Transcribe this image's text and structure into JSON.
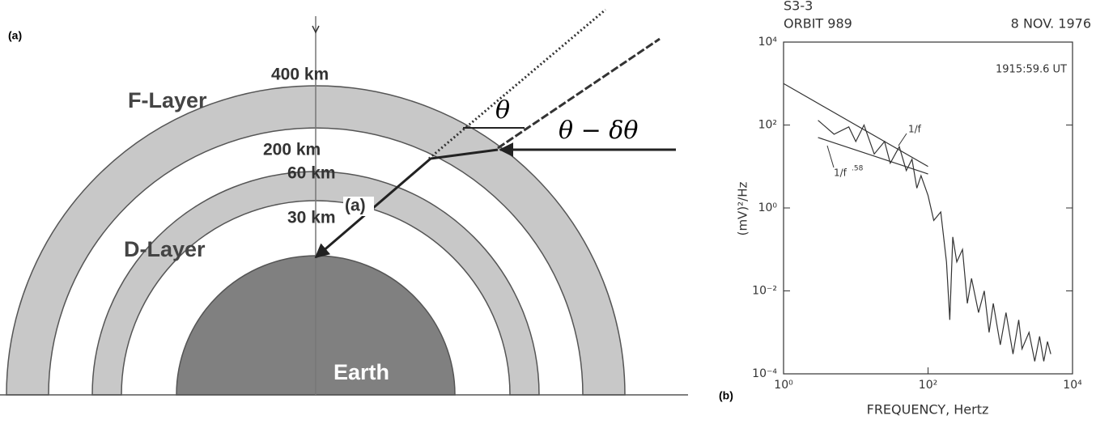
{
  "diagram": {
    "panel_label": "(a)",
    "labels": {
      "f_top": "400 km",
      "f_bottom": "200 km",
      "d_top": "60 km",
      "d_bottom": "30 km",
      "f_layer": "F-Layer",
      "d_layer": "D-Layer",
      "earth": "Earth",
      "ray_label": "(a)",
      "theta": "θ",
      "theta_delta": "θ − δθ"
    }
  },
  "chart_data": {
    "type": "line",
    "panel_label": "(b)",
    "title": "S3-3",
    "subtitle": "ORBIT 989",
    "date": "8 NOV. 1976",
    "time": "1915:59.6 UT",
    "x_label": "FREQUENCY, Hertz",
    "y_label": "(mV)²/Hz",
    "log_x": true,
    "log_y": true,
    "xlim": [
      1,
      10000
    ],
    "ylim": [
      0.0001,
      10000
    ],
    "xticks": [
      {
        "value": 1,
        "label": "10⁰"
      },
      {
        "value": 100,
        "label": "10²"
      },
      {
        "value": 10000,
        "label": "10⁴"
      }
    ],
    "yticks": [
      {
        "value": 0.0001,
        "label": "10⁻⁴"
      },
      {
        "value": 0.01,
        "label": "10⁻²"
      },
      {
        "value": 1,
        "label": "10⁰"
      },
      {
        "value": 100,
        "label": "10²"
      },
      {
        "value": 10000,
        "label": "10⁴"
      }
    ],
    "annotations": {
      "inv_f": "1/f",
      "inv_f_pow": "1/f",
      "pow": ".58"
    },
    "series": [
      {
        "color": "#333",
        "x": [
          3,
          5,
          8,
          10,
          13,
          18,
          25,
          30,
          40,
          50,
          60,
          70,
          80,
          100,
          120,
          150,
          180,
          200,
          220,
          250,
          300,
          350,
          400,
          500,
          600,
          700,
          800,
          1000,
          1200,
          1500,
          1800,
          2000,
          2500,
          3000,
          3500,
          4000,
          4500,
          5000
        ],
        "values": [
          130,
          60,
          90,
          40,
          100,
          20,
          40,
          12,
          30,
          8,
          15,
          3,
          6,
          2,
          0.5,
          0.8,
          0.05,
          0.002,
          0.2,
          0.05,
          0.1,
          0.005,
          0.02,
          0.003,
          0.01,
          0.001,
          0.005,
          0.0005,
          0.003,
          0.0003,
          0.002,
          0.0004,
          0.001,
          0.0002,
          0.0008,
          0.0002,
          0.0006,
          0.0003
        ]
      },
      {
        "color": "#333",
        "x": [
          1,
          100
        ],
        "values": [
          1000,
          10
        ]
      },
      {
        "color": "#333",
        "x": [
          3,
          100
        ],
        "values": [
          50,
          6.6
        ]
      }
    ]
  }
}
